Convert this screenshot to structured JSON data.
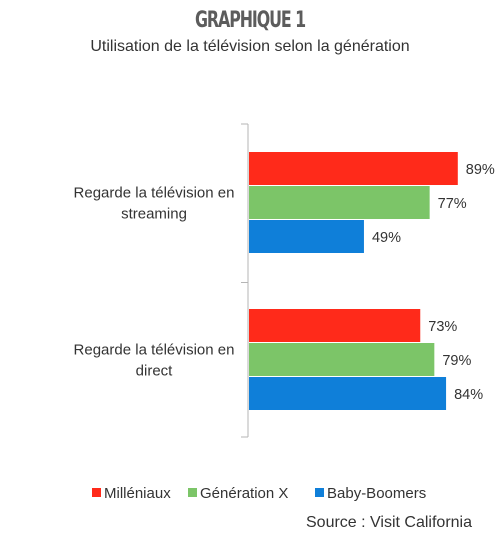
{
  "chart_data": {
    "type": "bar",
    "orientation": "horizontal",
    "title": "GRAPHIQUE 1",
    "subtitle": "Utilisation de la télévision selon la génération",
    "categories": [
      "Regarde la télévision en streaming",
      "Regarde la télévision en direct"
    ],
    "series": [
      {
        "name": "Milléniaux",
        "color": "#ff2a1a",
        "values": [
          89,
          73
        ],
        "labels": [
          "89%",
          "73%"
        ]
      },
      {
        "name": "Génération X",
        "color": "#7cc568",
        "values": [
          77,
          79
        ],
        "labels": [
          "77%",
          "79%"
        ]
      },
      {
        "name": "Baby-Boomers",
        "color": "#0f7fd9",
        "values": [
          49,
          84
        ],
        "labels": [
          "49%",
          "84%"
        ]
      }
    ],
    "xlim": [
      0,
      100
    ],
    "grid": false,
    "legend": "bottom",
    "source": "Source : Visit California"
  }
}
